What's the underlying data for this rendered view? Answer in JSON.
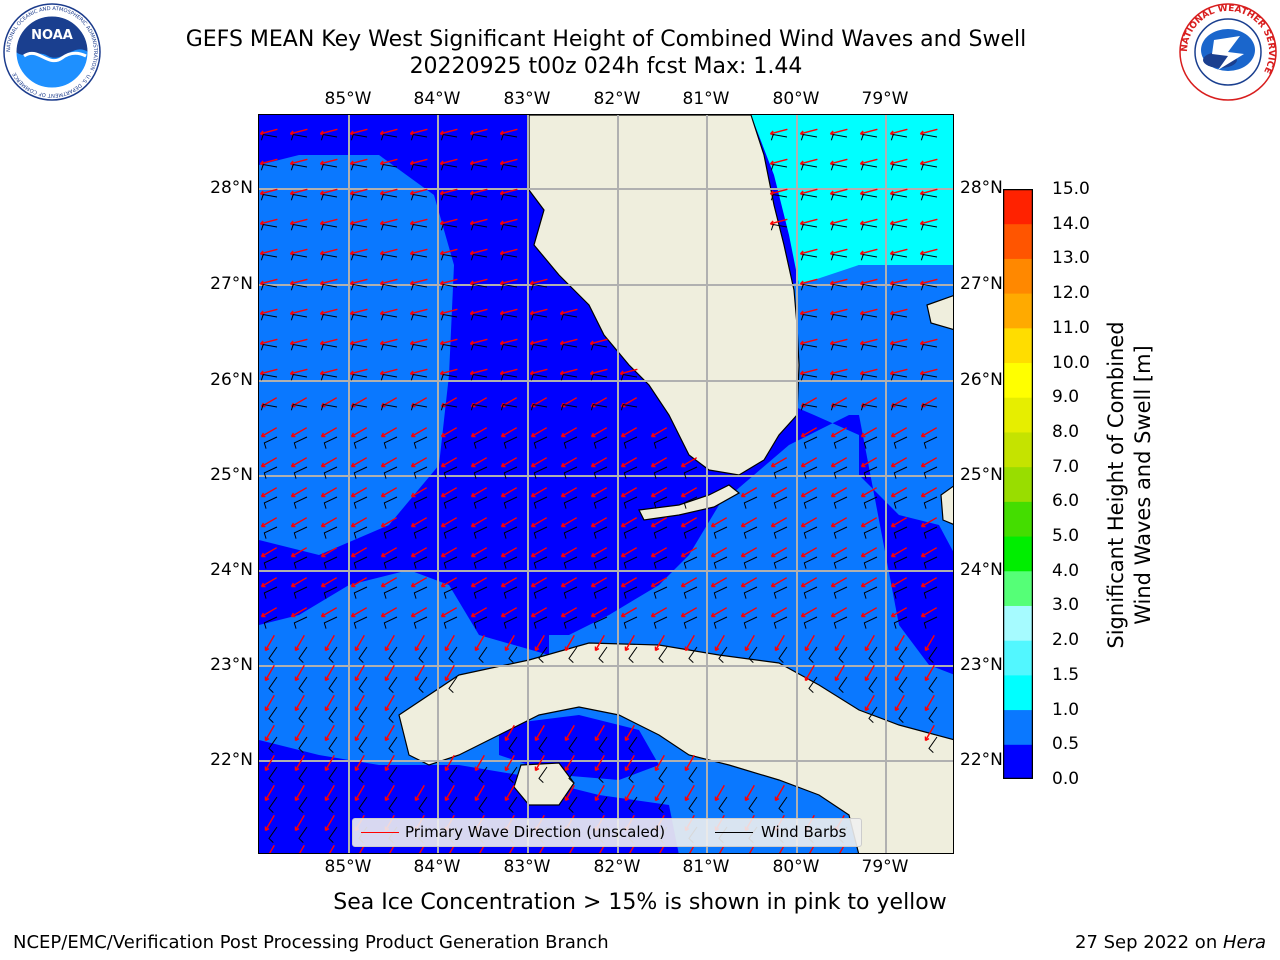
{
  "header": {
    "title_line1": "GEFS MEAN Key West Significant Height of Combined Wind Waves and Swell",
    "title_line2": "20220925 t00z 024h fcst   Max: 1.44"
  },
  "logos": {
    "noaa": {
      "text": "NOAA",
      "ring_text": "NATIONAL OCEANIC AND ATMOSPHERIC ADMINISTRATION · U.S. DEPARTMENT OF COMMERCE"
    },
    "nws": {
      "ring_text": "NATIONAL WEATHER SERVICE"
    }
  },
  "map": {
    "longitude_labels": [
      "85°W",
      "84°W",
      "83°W",
      "82°W",
      "81°W",
      "80°W",
      "79°W"
    ],
    "latitude_labels": [
      "28°N",
      "27°N",
      "26°N",
      "25°N",
      "24°N",
      "23°N",
      "22°N"
    ],
    "extent": {
      "lon_min": -86.0,
      "lon_max": -78.25,
      "lat_min": 21.0,
      "lat_max": 28.75
    },
    "colors": {
      "land": "#efeedd",
      "coast": "#000000",
      "grid": "#b0b0b0",
      "band_0_0_5": "#0000ff",
      "band_0_5_1_0": "#0a78ff",
      "band_1_0_1_5": "#00ffff",
      "wave_arrow": "#ff0000",
      "wind_barb": "#000000"
    }
  },
  "legend": {
    "primary_wave": "Primary Wave Direction (unscaled)",
    "wind_barbs": "Wind Barbs"
  },
  "colorbar": {
    "title_line1": "Significant Height of Combined",
    "title_line2": "Wind Waves and Swell [m]",
    "ticks": [
      "0.0",
      "0.5",
      "1.0",
      "1.5",
      "2.0",
      "3.0",
      "4.0",
      "5.0",
      "6.0",
      "7.0",
      "8.0",
      "9.0",
      "10.0",
      "11.0",
      "12.0",
      "13.0",
      "14.0",
      "15.0"
    ],
    "colors": [
      "#0000ff",
      "#0a78ff",
      "#00ffff",
      "#52f7ff",
      "#a6fbff",
      "#55ff77",
      "#00ee00",
      "#44dd00",
      "#99dd00",
      "#c5e300",
      "#e6ee00",
      "#ffff00",
      "#ffdd00",
      "#ffaa00",
      "#ff8800",
      "#ff5500",
      "#ff2200"
    ]
  },
  "subtitle": "Sea Ice Concentration > 15% is shown in pink to yellow",
  "footer": {
    "left": "NCEP/EMC/Verification Post Processing Product Generation Branch",
    "date": "27 Sep 2022 on ",
    "host": "Hera"
  }
}
